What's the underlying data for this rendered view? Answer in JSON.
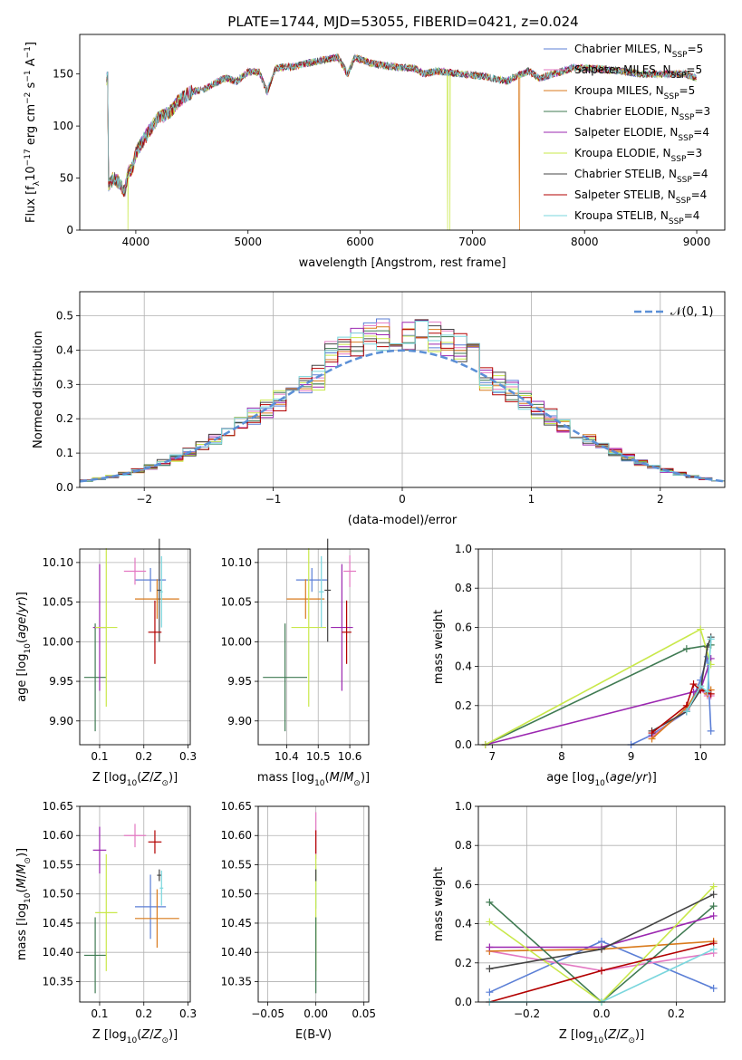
{
  "figure": {
    "title": "PLATE=1744, MJD=53055, FIBERID=0421, z=0.024"
  },
  "legend_items": [
    {
      "label": "Chabrier MILES, N",
      "sub": "SSP",
      "tail": "=5",
      "color": "#5b7fd6"
    },
    {
      "label": "Salpeter MILES, N",
      "sub": "SSP",
      "tail": "=5",
      "color": "#e377c2"
    },
    {
      "label": "Kroupa MILES, N",
      "sub": "SSP",
      "tail": "=5",
      "color": "#d97a1c"
    },
    {
      "label": "Chabrier ELODIE, N",
      "sub": "SSP",
      "tail": "=3",
      "color": "#3f7a52"
    },
    {
      "label": "Salpeter ELODIE, N",
      "sub": "SSP",
      "tail": "=4",
      "color": "#9b27b0"
    },
    {
      "label": "Kroupa ELODIE, N",
      "sub": "SSP",
      "tail": "=3",
      "color": "#c9e84a"
    },
    {
      "label": "Chabrier STELIB, N",
      "sub": "SSP",
      "tail": "=4",
      "color": "#444444"
    },
    {
      "label": "Salpeter STELIB, N",
      "sub": "SSP",
      "tail": "=4",
      "color": "#b30000"
    },
    {
      "label": "Kroupa STELIB, N",
      "sub": "SSP",
      "tail": "=4",
      "color": "#7ad6dd"
    }
  ],
  "chart_data": [
    {
      "type": "line",
      "title": "PLATE=1744, MJD=53055, FIBERID=0421, z=0.024",
      "xlabel": "wavelength [Angstrom, rest frame]",
      "ylabel": "Flux [f",
      "ylabel_parts": [
        "Flux [f",
        "λ",
        "10",
        "−17",
        " erg cm",
        "−2",
        " s",
        "−1",
        " A",
        "−1",
        "]"
      ],
      "xlim": [
        3500,
        9250
      ],
      "ylim": [
        0,
        188
      ],
      "xticks": [
        4000,
        5000,
        6000,
        7000,
        8000,
        9000
      ],
      "yticks": [
        0,
        50,
        100,
        150
      ],
      "continuum": [
        [
          3750,
          42
        ],
        [
          3800,
          50
        ],
        [
          3850,
          46
        ],
        [
          3900,
          36
        ],
        [
          3930,
          55
        ],
        [
          3970,
          60
        ],
        [
          4000,
          74
        ],
        [
          4100,
          92
        ],
        [
          4200,
          108
        ],
        [
          4300,
          113
        ],
        [
          4400,
          126
        ],
        [
          4500,
          133
        ],
        [
          4600,
          135
        ],
        [
          4700,
          141
        ],
        [
          4800,
          146
        ],
        [
          4900,
          143
        ],
        [
          5000,
          152
        ],
        [
          5100,
          152
        ],
        [
          5170,
          133
        ],
        [
          5250,
          156
        ],
        [
          5400,
          157
        ],
        [
          5600,
          162
        ],
        [
          5800,
          166
        ],
        [
          5890,
          150
        ],
        [
          5950,
          166
        ],
        [
          6100,
          160
        ],
        [
          6300,
          157
        ],
        [
          6500,
          155
        ],
        [
          6563,
          150
        ],
        [
          6700,
          153
        ],
        [
          6900,
          150
        ],
        [
          7100,
          148
        ],
        [
          7300,
          143
        ],
        [
          7500,
          153
        ],
        [
          7600,
          146
        ],
        [
          7700,
          149
        ],
        [
          7900,
          156
        ],
        [
          8100,
          155
        ],
        [
          8300,
          153
        ],
        [
          8500,
          150
        ],
        [
          8700,
          150
        ],
        [
          8900,
          150
        ],
        [
          9000,
          146
        ]
      ],
      "drops": [
        {
          "series": "Kroupa ELODIE",
          "x": 3930,
          "to": 0
        },
        {
          "series": "Kroupa ELODIE",
          "x": 6780,
          "to": 0
        },
        {
          "series": "Kroupa ELODIE",
          "x": 6800,
          "to": 0
        },
        {
          "series": "Kroupa MILES",
          "x": 7420,
          "to": 0
        }
      ],
      "legend": "top-right",
      "grid": false
    },
    {
      "type": "bar",
      "xlabel": "(data-model)/error",
      "ylabel": "Normed distribution",
      "xlim": [
        -2.5,
        2.5
      ],
      "ylim": [
        0,
        0.57
      ],
      "xticks": [
        -2,
        -1,
        0,
        1,
        2
      ],
      "yticks": [
        0.0,
        0.1,
        0.2,
        0.3,
        0.4,
        0.5
      ],
      "bin_width": 0.1,
      "gaussian": {
        "label": "𝒩(0, 1)",
        "color": "#5b8fd6"
      },
      "legend": "top-right",
      "grid": true
    },
    {
      "type": "scatter",
      "xlabel": "Z [log",
      "xlabel_tail": "(Z/Z",
      "ylabel": "age  [log",
      "xlim": [
        0.055,
        0.305
      ],
      "ylim": [
        9.87,
        10.117
      ],
      "xticks": [
        0.1,
        0.2,
        0.3
      ],
      "yticks": [
        9.9,
        9.95,
        10.0,
        10.05,
        10.1
      ],
      "points": [
        {
          "series": "Chabrier MILES",
          "x": 0.215,
          "y": 10.078,
          "xerr": 0.035,
          "yerr": 0.015
        },
        {
          "series": "Salpeter MILES",
          "x": 0.18,
          "y": 10.089,
          "xerr": 0.025,
          "yerr": 0.017
        },
        {
          "series": "Kroupa MILES",
          "x": 0.23,
          "y": 10.054,
          "xerr": 0.05,
          "yerr": 0.025
        },
        {
          "series": "Chabrier ELODIE",
          "x": 0.09,
          "y": 9.955,
          "xerr": 0.025,
          "yerr": 0.068
        },
        {
          "series": "Salpeter ELODIE",
          "x": 0.1,
          "y": 10.018,
          "xerr": 0.015,
          "yerr": 0.08
        },
        {
          "series": "Kroupa ELODIE",
          "x": 0.115,
          "y": 10.018,
          "xerr": 0.025,
          "yerr": 0.1
        },
        {
          "series": "Chabrier STELIB",
          "x": 0.235,
          "y": 10.065,
          "xerr": 0.005,
          "yerr": 0.065
        },
        {
          "series": "Salpeter STELIB",
          "x": 0.225,
          "y": 10.012,
          "xerr": 0.015,
          "yerr": 0.04
        },
        {
          "series": "Kroupa STELIB",
          "x": 0.24,
          "y": 10.063,
          "xerr": 0.003,
          "yerr": 0.045
        }
      ]
    },
    {
      "type": "scatter",
      "xlabel": "mass [log",
      "xlim": [
        10.31,
        10.66
      ],
      "ylim": [
        9.87,
        10.117
      ],
      "xticks": [
        10.4,
        10.5,
        10.6
      ],
      "yticks": [
        9.9,
        9.95,
        10.0,
        10.05,
        10.1
      ],
      "points": [
        {
          "series": "Chabrier MILES",
          "x": 10.48,
          "y": 10.078,
          "xerr": 0.05,
          "yerr": 0.015
        },
        {
          "series": "Salpeter MILES",
          "x": 10.6,
          "y": 10.089,
          "xerr": 0.02,
          "yerr": 0.02
        },
        {
          "series": "Kroupa MILES",
          "x": 10.46,
          "y": 10.054,
          "xerr": 0.06,
          "yerr": 0.025
        },
        {
          "series": "Chabrier ELODIE",
          "x": 10.395,
          "y": 9.955,
          "xerr": 0.07,
          "yerr": 0.068
        },
        {
          "series": "Salpeter ELODIE",
          "x": 10.575,
          "y": 10.018,
          "xerr": 0.035,
          "yerr": 0.08
        },
        {
          "series": "Kroupa ELODIE",
          "x": 10.47,
          "y": 10.018,
          "xerr": 0.055,
          "yerr": 0.1
        },
        {
          "series": "Chabrier STELIB",
          "x": 10.53,
          "y": 10.065,
          "xerr": 0.01,
          "yerr": 0.065
        },
        {
          "series": "Salpeter STELIB",
          "x": 10.59,
          "y": 10.012,
          "xerr": 0.015,
          "yerr": 0.04
        },
        {
          "series": "Kroupa STELIB",
          "x": 10.51,
          "y": 10.063,
          "xerr": 0.008,
          "yerr": 0.045
        }
      ]
    },
    {
      "type": "line",
      "xlabel": "age  [log",
      "ylabel": "mass weight",
      "xlim": [
        6.8,
        10.35
      ],
      "ylim": [
        0,
        1.0
      ],
      "xticks": [
        7,
        8,
        9,
        10
      ],
      "yticks": [
        0.0,
        0.2,
        0.4,
        0.6,
        0.8,
        1.0
      ],
      "grid": true,
      "series": [
        {
          "name": "Chabrier MILES",
          "x": [
            9.0,
            9.3,
            9.8,
            10.0,
            10.1,
            10.15
          ],
          "y": [
            0.0,
            0.05,
            0.17,
            0.33,
            0.45,
            0.07
          ]
        },
        {
          "name": "Salpeter MILES",
          "x": [
            9.3,
            9.8,
            10.0,
            10.1,
            10.15
          ],
          "y": [
            0.04,
            0.18,
            0.28,
            0.25,
            0.25
          ]
        },
        {
          "name": "Kroupa MILES",
          "x": [
            9.3,
            9.8,
            10.0,
            10.1,
            10.15
          ],
          "y": [
            0.03,
            0.19,
            0.3,
            0.26,
            0.28
          ]
        },
        {
          "name": "Chabrier ELODIE",
          "x": [
            6.9,
            9.8,
            10.15
          ],
          "y": [
            0.0,
            0.49,
            0.51
          ]
        },
        {
          "name": "Salpeter ELODIE",
          "x": [
            6.9,
            9.9,
            10.0,
            10.15
          ],
          "y": [
            0.0,
            0.27,
            0.28,
            0.44
          ]
        },
        {
          "name": "Kroupa ELODIE",
          "x": [
            6.9,
            10.0,
            10.15
          ],
          "y": [
            0.0,
            0.59,
            0.41
          ]
        },
        {
          "name": "Chabrier STELIB",
          "x": [
            9.3,
            9.8,
            10.0,
            10.1,
            10.15
          ],
          "y": [
            0.07,
            0.17,
            0.28,
            0.5,
            0.55
          ]
        },
        {
          "name": "Salpeter STELIB",
          "x": [
            9.3,
            9.8,
            9.9,
            10.0,
            10.15
          ],
          "y": [
            0.06,
            0.2,
            0.31,
            0.28,
            0.26
          ]
        },
        {
          "name": "Kroupa STELIB",
          "x": [
            9.8,
            10.0,
            10.1,
            10.15
          ],
          "y": [
            0.17,
            0.3,
            0.27,
            0.54
          ]
        }
      ]
    },
    {
      "type": "scatter",
      "xlabel": "Z [log",
      "ylabel": "mass [log",
      "xlim": [
        0.055,
        0.305
      ],
      "ylim": [
        10.315,
        10.65
      ],
      "xticks": [
        0.1,
        0.2,
        0.3
      ],
      "yticks": [
        10.35,
        10.4,
        10.45,
        10.5,
        10.55,
        10.6,
        10.65
      ],
      "points": [
        {
          "series": "Chabrier MILES",
          "x": 0.215,
          "y": 10.478,
          "xerr": 0.035,
          "yerr": 0.055
        },
        {
          "series": "Salpeter MILES",
          "x": 0.18,
          "y": 10.6,
          "xerr": 0.025,
          "yerr": 0.02
        },
        {
          "series": "Kroupa MILES",
          "x": 0.23,
          "y": 10.458,
          "xerr": 0.05,
          "yerr": 0.05
        },
        {
          "series": "Chabrier ELODIE",
          "x": 0.09,
          "y": 10.395,
          "xerr": 0.025,
          "yerr": 0.065
        },
        {
          "series": "Salpeter ELODIE",
          "x": 0.1,
          "y": 10.575,
          "xerr": 0.015,
          "yerr": 0.04
        },
        {
          "series": "Kroupa ELODIE",
          "x": 0.115,
          "y": 10.468,
          "xerr": 0.025,
          "yerr": 0.1
        },
        {
          "series": "Chabrier STELIB",
          "x": 0.235,
          "y": 10.532,
          "xerr": 0.005,
          "yerr": 0.01
        },
        {
          "series": "Salpeter STELIB",
          "x": 0.225,
          "y": 10.589,
          "xerr": 0.015,
          "yerr": 0.02
        },
        {
          "series": "Kroupa STELIB",
          "x": 0.24,
          "y": 10.51,
          "xerr": 0.004,
          "yerr": 0.03
        }
      ]
    },
    {
      "type": "scatter",
      "xlabel": "E(B-V)",
      "xlim": [
        -0.06,
        0.055
      ],
      "ylim": [
        10.315,
        10.65
      ],
      "xticks": [
        -0.05,
        0.0,
        0.05
      ],
      "yticks": [
        10.35,
        10.4,
        10.45,
        10.5,
        10.55,
        10.6,
        10.65
      ],
      "points": [
        {
          "series": "Salpeter MILES",
          "x": 0.0,
          "y": 10.6,
          "xerr": 0.0,
          "yerr": 0.04
        },
        {
          "series": "Salpeter STELIB",
          "x": 0.0,
          "y": 10.589,
          "xerr": 0.0,
          "yerr": 0.02
        },
        {
          "series": "Kroupa STELIB",
          "x": 0.0,
          "y": 10.51,
          "xerr": 0.0,
          "yerr": 0.035
        },
        {
          "series": "Kroupa ELODIE",
          "x": 0.0,
          "y": 10.468,
          "xerr": 0.0,
          "yerr": 0.1
        },
        {
          "series": "Chabrier ELODIE",
          "x": 0.0,
          "y": 10.395,
          "xerr": 0.0,
          "yerr": 0.065
        },
        {
          "series": "Chabrier STELIB",
          "x": 0.0,
          "y": 10.532,
          "xerr": 0.0,
          "yerr": 0.01
        }
      ]
    },
    {
      "type": "line",
      "xlabel": "Z [log",
      "ylabel": "mass weight",
      "xlim": [
        -0.33,
        0.33
      ],
      "ylim": [
        0,
        1.0
      ],
      "xticks": [
        -0.2,
        0.0,
        0.2
      ],
      "yticks": [
        0.0,
        0.2,
        0.4,
        0.6,
        0.8,
        1.0
      ],
      "grid": true,
      "series": [
        {
          "name": "Chabrier MILES",
          "x": [
            -0.3,
            0.0,
            0.3
          ],
          "y": [
            0.05,
            0.31,
            0.07
          ]
        },
        {
          "name": "Salpeter MILES",
          "x": [
            -0.3,
            0.0,
            0.3
          ],
          "y": [
            0.26,
            0.16,
            0.25
          ]
        },
        {
          "name": "Kroupa MILES",
          "x": [
            -0.3,
            0.0,
            0.3
          ],
          "y": [
            0.26,
            0.27,
            0.31
          ]
        },
        {
          "name": "Chabrier ELODIE",
          "x": [
            -0.3,
            0.0,
            0.3
          ],
          "y": [
            0.51,
            0.0,
            0.49
          ]
        },
        {
          "name": "Salpeter ELODIE",
          "x": [
            -0.3,
            0.0,
            0.3
          ],
          "y": [
            0.28,
            0.28,
            0.44
          ]
        },
        {
          "name": "Kroupa ELODIE",
          "x": [
            -0.3,
            0.0,
            0.3
          ],
          "y": [
            0.41,
            0.0,
            0.59
          ]
        },
        {
          "name": "Chabrier STELIB",
          "x": [
            -0.3,
            0.0,
            0.3
          ],
          "y": [
            0.17,
            0.27,
            0.55
          ]
        },
        {
          "name": "Salpeter STELIB",
          "x": [
            -0.3,
            0.0,
            0.3
          ],
          "y": [
            0.0,
            0.16,
            0.3
          ]
        },
        {
          "name": "Kroupa STELIB",
          "x": [
            -0.3,
            0.0,
            0.3
          ],
          "y": [
            0.0,
            0.0,
            0.27
          ]
        }
      ]
    }
  ]
}
